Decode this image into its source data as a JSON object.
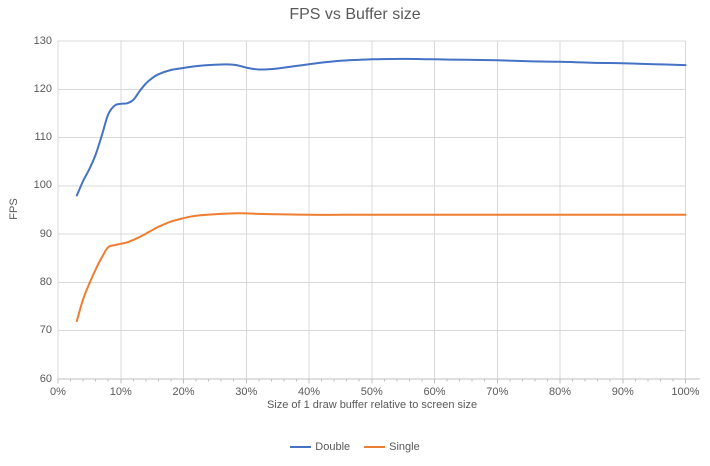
{
  "chart": {
    "title": "FPS vs Buffer size"
  },
  "colors": {
    "background": "#FFFFFF",
    "grid": "#D9D9D9",
    "axis": "#BFBFBF",
    "tick": "#BFBFBF",
    "text": "#595959",
    "series_double": "#4472C4",
    "series_single": "#ED7D31"
  },
  "chart_data": {
    "type": "line",
    "title": "FPS vs Buffer size",
    "xlabel": "Size of 1 draw buffer relative to screen size",
    "ylabel": "FPS",
    "xlim": [
      0,
      100
    ],
    "ylim": [
      60,
      130
    ],
    "grid": true,
    "legend_position": "bottom",
    "x_tick_step": 10,
    "x_minor_tick_step": 2,
    "x_ticks": [
      "0%",
      "10%",
      "20%",
      "30%",
      "40%",
      "50%",
      "60%",
      "70%",
      "80%",
      "90%",
      "100%"
    ],
    "y_ticks": [
      60,
      70,
      80,
      90,
      100,
      110,
      120,
      130
    ],
    "x": [
      3,
      4,
      5,
      6,
      7,
      8,
      9,
      10,
      11,
      12,
      13,
      14,
      15,
      16,
      18,
      20,
      22,
      25,
      28,
      30,
      32,
      35,
      40,
      45,
      50,
      55,
      60,
      65,
      70,
      75,
      80,
      85,
      90,
      95,
      100
    ],
    "series": [
      {
        "name": "Double",
        "color": "#4472C4",
        "values": [
          98,
          101,
          103.5,
          106.5,
          110.5,
          114.8,
          116.6,
          117,
          117.1,
          117.8,
          119.6,
          121.2,
          122.3,
          123.1,
          124,
          124.4,
          124.8,
          125.1,
          125.1,
          124.5,
          124.1,
          124.3,
          125.2,
          125.9,
          126.2,
          126.3,
          126.2,
          126.1,
          126,
          125.8,
          125.7,
          125.5,
          125.4,
          125.2,
          125
        ]
      },
      {
        "name": "Single",
        "color": "#ED7D31",
        "values": [
          72,
          76.5,
          79.8,
          82.7,
          85.2,
          87.3,
          87.7,
          88,
          88.3,
          88.8,
          89.4,
          90.1,
          90.8,
          91.5,
          92.6,
          93.3,
          93.8,
          94.1,
          94.3,
          94.3,
          94.2,
          94.1,
          94,
          94,
          94,
          94,
          94,
          94,
          94,
          94,
          94,
          94,
          94,
          94,
          94
        ]
      }
    ]
  }
}
